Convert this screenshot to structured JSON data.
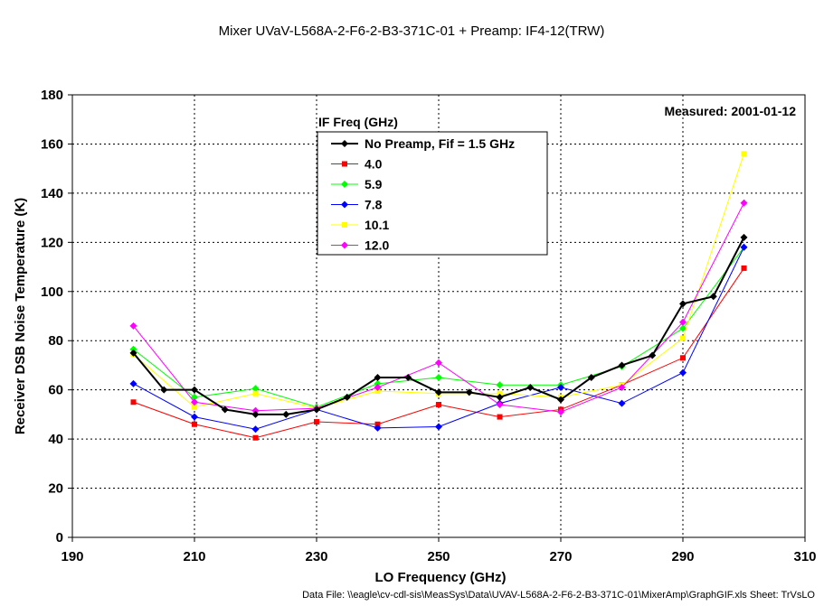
{
  "chart_data": {
    "type": "line",
    "title": "Mixer UVaV-L568A-2-F6-2-B3-371C-01 + Preamp: IF4-12(TRW)",
    "xlabel": "LO Frequency (GHz)",
    "ylabel": "Receiver DSB Noise Temperature (K)",
    "xlim": [
      190,
      310
    ],
    "ylim": [
      0,
      180
    ],
    "x_ticks": [
      "190",
      "210",
      "230",
      "250",
      "270",
      "290",
      "310"
    ],
    "y_ticks": [
      "0",
      "20",
      "40",
      "60",
      "80",
      "100",
      "120",
      "140",
      "160",
      "180"
    ],
    "grid": true,
    "legend_title": "IF Freq (GHz)",
    "legend_position": "top-center",
    "annotation": "Measured: 2001-01-12",
    "footer": "Data File: \\\\eagle\\cv-cdl-sis\\MeasSys\\Data\\UVAV-L568A-2-F6-2-B3-371C-01\\MixerAmp\\GraphGIF.xls  Sheet: TrVsLO",
    "series": [
      {
        "name": "No Preamp, Fif = 1.5 GHz",
        "color": "#000000",
        "marker": "diamond",
        "x": [
          200,
          205,
          210,
          215,
          220,
          225,
          230,
          235,
          240,
          245,
          250,
          255,
          260,
          265,
          270,
          275,
          280,
          285,
          290,
          295,
          300
        ],
        "y": [
          75,
          60,
          60,
          52,
          50,
          50,
          52,
          57,
          65,
          65,
          59,
          59,
          57,
          61,
          56,
          65,
          70,
          74,
          95,
          98,
          122
        ]
      },
      {
        "name": "4.0",
        "color": "#ff0000",
        "marker": "square",
        "x": [
          200,
          210,
          220,
          230,
          240,
          250,
          260,
          270,
          280,
          290,
          300
        ],
        "y": [
          55,
          46,
          40.5,
          47,
          46,
          54,
          49,
          52,
          62,
          73,
          109.5
        ]
      },
      {
        "name": "5.9",
        "color": "#00ff00",
        "marker": "diamond",
        "x": [
          200,
          210,
          220,
          230,
          240,
          250,
          260,
          270,
          280,
          290,
          300
        ],
        "y": [
          76.5,
          57,
          60.5,
          53,
          62.5,
          65,
          62,
          62,
          69.5,
          85,
          118
        ]
      },
      {
        "name": "7.8",
        "color": "#0000ff",
        "marker": "diamond",
        "x": [
          200,
          210,
          220,
          230,
          240,
          250,
          260,
          270,
          280,
          290,
          300
        ],
        "y": [
          62.5,
          49,
          44,
          52,
          44.5,
          45,
          54.5,
          61,
          54.5,
          67,
          118
        ]
      },
      {
        "name": "10.1",
        "color": "#ffff00",
        "marker": "square",
        "x": [
          200,
          210,
          220,
          230,
          240,
          250,
          260,
          270,
          280,
          290,
          300
        ],
        "y": [
          74.5,
          53,
          58.5,
          52.5,
          59.5,
          58.5,
          58.5,
          57,
          62,
          81,
          156
        ]
      },
      {
        "name": "12.0",
        "color": "#ff00ff",
        "marker": "diamond",
        "x": [
          200,
          210,
          220,
          230,
          240,
          250,
          260,
          270,
          280,
          290,
          300
        ],
        "y": [
          86,
          55,
          51.5,
          52.5,
          61,
          71,
          54,
          51,
          61,
          87.5,
          136
        ]
      }
    ]
  }
}
